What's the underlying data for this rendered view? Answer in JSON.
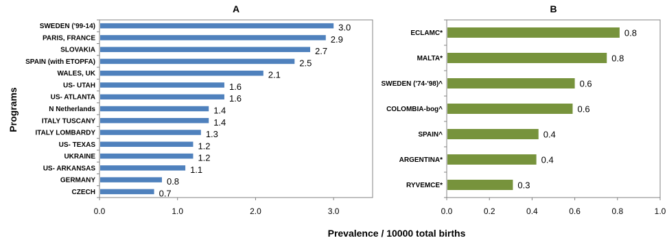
{
  "xlabel": "Prevalence / 10000 total births",
  "ylabel": "Programs",
  "colors": {
    "panelA": "#4f81bd",
    "panelB": "#77933c"
  },
  "chart_data": [
    {
      "type": "bar",
      "orientation": "horizontal",
      "title": "A",
      "categories": [
        "SWEDEN ('99-14)",
        "PARIS, FRANCE",
        "SLOVAKIA",
        "SPAIN (with ETOPFA)",
        "WALES, UK",
        "US- UTAH",
        "US- ATLANTA",
        "N Netherlands",
        "ITALY TUSCANY",
        "ITALY LOMBARDY",
        "US- TEXAS",
        "UKRAINE",
        "US- ARKANSAS",
        "GERMANY",
        "CZECH"
      ],
      "values": [
        3.0,
        2.9,
        2.7,
        2.5,
        2.1,
        1.6,
        1.6,
        1.4,
        1.4,
        1.3,
        1.2,
        1.2,
        1.1,
        0.8,
        0.7
      ],
      "value_labels": [
        "3.0",
        "2.9",
        "2.7",
        "2.5",
        "2.1",
        "1.6",
        "1.6",
        "1.4",
        "1.4",
        "1.3",
        "1.2",
        "1.2",
        "1.1",
        "0.8",
        "0.7"
      ],
      "xlim": [
        0,
        3.5
      ],
      "xticks": [
        "0.0",
        "1.0",
        "2.0",
        "3.0"
      ],
      "xtick_values": [
        0,
        1,
        2,
        3
      ],
      "color": "#4f81bd",
      "grid": false
    },
    {
      "type": "bar",
      "orientation": "horizontal",
      "title": "B",
      "categories": [
        "ECLAMC*",
        "MALTA*",
        "SWEDEN ('74-'98)^",
        "COLOMBIA-bog^",
        "SPAIN^",
        "ARGENTINA*",
        "RYVEMCE*"
      ],
      "values": [
        0.81,
        0.75,
        0.6,
        0.59,
        0.43,
        0.42,
        0.31
      ],
      "value_labels": [
        "0.8",
        "0.8",
        "0.6",
        "0.6",
        "0.4",
        "0.4",
        "0.3"
      ],
      "xlim": [
        0,
        1.0
      ],
      "xticks": [
        "0.0",
        "0.2",
        "0.4",
        "0.6",
        "0.8",
        "1.0"
      ],
      "xtick_values": [
        0,
        0.2,
        0.4,
        0.6,
        0.8,
        1.0
      ],
      "color": "#77933c",
      "grid": false
    }
  ]
}
